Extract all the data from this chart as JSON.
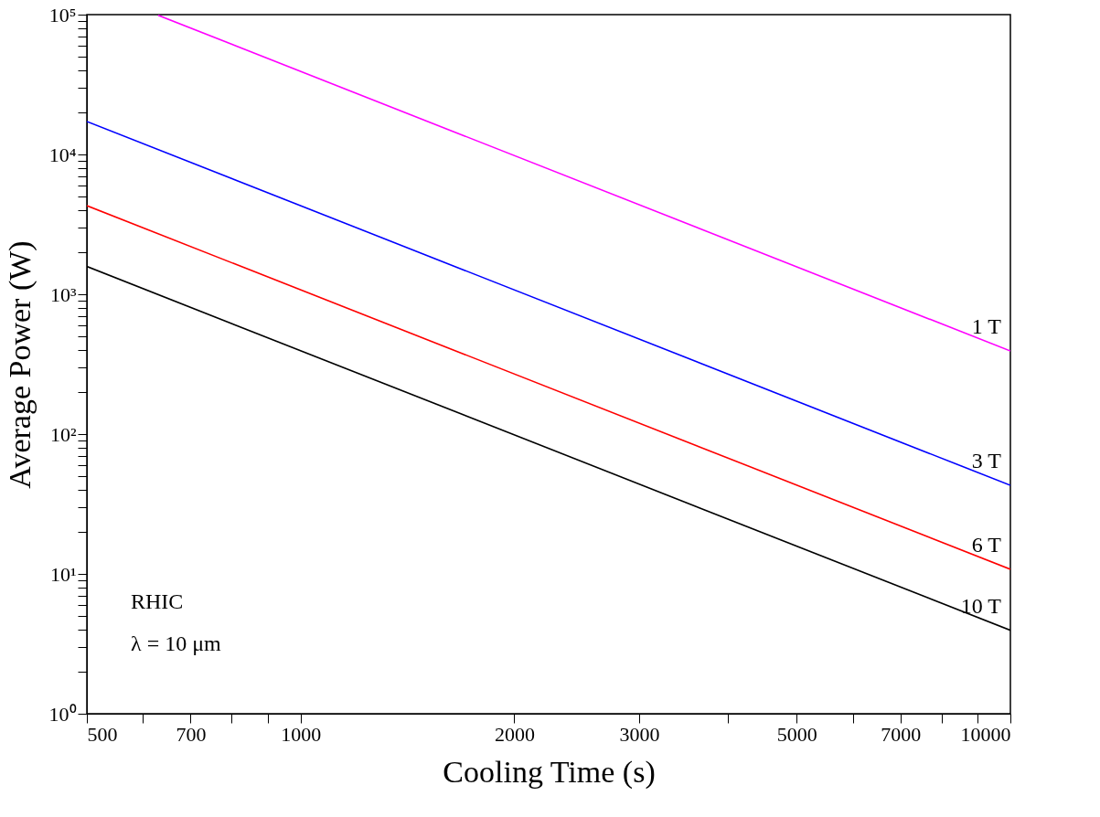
{
  "chart_data": {
    "type": "line",
    "xlabel": "Cooling Time (s)",
    "ylabel": "Average Power (W)",
    "log": "xy",
    "grid": false,
    "marker": "none",
    "line_style": "solid",
    "xlim": [
      500,
      10000
    ],
    "ylim": [
      1,
      100000
    ],
    "xticks": [
      500,
      {
        "value": 600,
        "label": null
      },
      700,
      {
        "value": 800,
        "label": null
      },
      {
        "value": 900,
        "label": null
      },
      1000,
      2000,
      3000,
      {
        "value": 4000,
        "label": null
      },
      5000,
      {
        "value": 6000,
        "label": null
      },
      7000,
      {
        "value": 8000,
        "label": null
      },
      {
        "value": 9000,
        "label": null
      },
      10000
    ],
    "yticks": [
      {
        "value": 1,
        "label": "10⁰"
      },
      {
        "value": 2,
        "label": null
      },
      {
        "value": 3,
        "label": null
      },
      {
        "value": 4,
        "label": null
      },
      {
        "value": 5,
        "label": null
      },
      {
        "value": 6,
        "label": null
      },
      {
        "value": 7,
        "label": null
      },
      {
        "value": 8,
        "label": null
      },
      {
        "value": 9,
        "label": null
      },
      {
        "value": 10,
        "label": "10¹"
      },
      {
        "value": 20,
        "label": null
      },
      {
        "value": 30,
        "label": null
      },
      {
        "value": 40,
        "label": null
      },
      {
        "value": 50,
        "label": null
      },
      {
        "value": 60,
        "label": null
      },
      {
        "value": 70,
        "label": null
      },
      {
        "value": 80,
        "label": null
      },
      {
        "value": 90,
        "label": null
      },
      {
        "value": 100,
        "label": "10²"
      },
      {
        "value": 200,
        "label": null
      },
      {
        "value": 300,
        "label": null
      },
      {
        "value": 400,
        "label": null
      },
      {
        "value": 500,
        "label": null
      },
      {
        "value": 600,
        "label": null
      },
      {
        "value": 700,
        "label": null
      },
      {
        "value": 800,
        "label": null
      },
      {
        "value": 900,
        "label": null
      },
      {
        "value": 1000,
        "label": "10³"
      },
      {
        "value": 2000,
        "label": null
      },
      {
        "value": 3000,
        "label": null
      },
      {
        "value": 4000,
        "label": null
      },
      {
        "value": 5000,
        "label": null
      },
      {
        "value": 6000,
        "label": null
      },
      {
        "value": 7000,
        "label": null
      },
      {
        "value": 8000,
        "label": null
      },
      {
        "value": 9000,
        "label": null
      },
      {
        "value": 10000,
        "label": "10⁴"
      },
      {
        "value": 20000,
        "label": null
      },
      {
        "value": 30000,
        "label": null
      },
      {
        "value": 40000,
        "label": null
      },
      {
        "value": 50000,
        "label": null
      },
      {
        "value": 60000,
        "label": null
      },
      {
        "value": 70000,
        "label": null
      },
      {
        "value": 80000,
        "label": null
      },
      {
        "value": 90000,
        "label": null
      },
      {
        "value": 100000,
        "label": "10⁵"
      }
    ],
    "series": [
      {
        "name": "1 T",
        "color": "#ff00ff",
        "x": [
          630,
          10000
        ],
        "values": [
          99000,
          393
        ]
      },
      {
        "name": "3 T",
        "color": "#0000ff",
        "x": [
          500,
          10000
        ],
        "values": [
          17200,
          43
        ]
      },
      {
        "name": "6 T",
        "color": "#ff0000",
        "x": [
          500,
          10000
        ],
        "values": [
          4300,
          10.8
        ]
      },
      {
        "name": "10 T",
        "color": "#000000",
        "x": [
          500,
          10000
        ],
        "values": [
          1580,
          3.95
        ]
      }
    ],
    "annotations": [
      "RHIC",
      "λ = 10 μm"
    ]
  }
}
